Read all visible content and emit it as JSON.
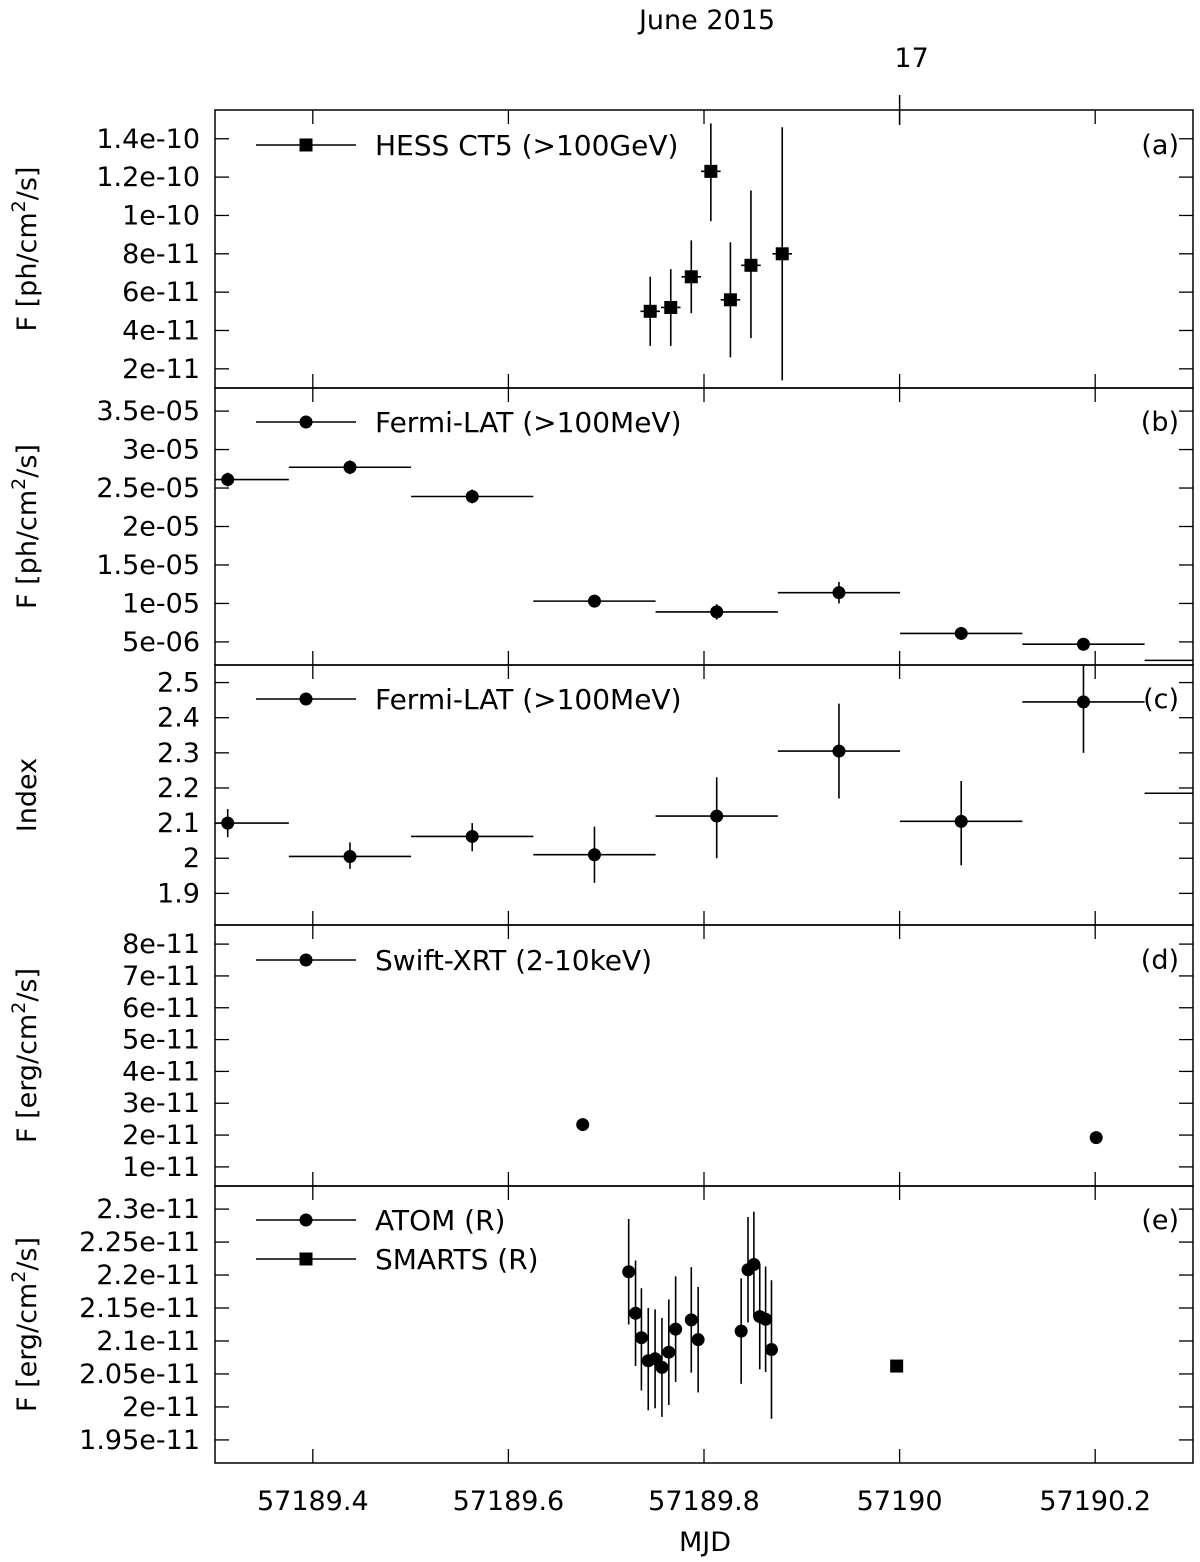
{
  "chart_data": {
    "type": "scatter",
    "layout": "five vertically stacked panels sharing the MJD x-axis",
    "top_axis": {
      "title": "June 2015",
      "tick_values": [
        57190
      ],
      "tick_labels": [
        "17"
      ]
    },
    "x_axis": {
      "label": "MJD",
      "range": [
        57189.3,
        57190.3
      ],
      "tick_values": [
        57189.4,
        57189.6,
        57189.8,
        57190.0,
        57190.2
      ],
      "tick_labels": [
        "57189.4",
        "57189.6",
        "57189.8",
        "57190",
        "57190.2"
      ]
    },
    "panels": [
      {
        "id": "a",
        "panel_label": "(a)",
        "ylabel": "F [ph/cm²/s]",
        "ylabel_main": "F [ph/cm",
        "ylabel_sup": "2",
        "ylabel_tail": "/s]",
        "ylim": [
          1e-11,
          1.55e-10
        ],
        "yticks": [
          2e-11,
          4e-11,
          6e-11,
          8e-11,
          1e-10,
          1.2e-10,
          1.4e-10
        ],
        "ytick_labels": [
          "2e-11",
          "4e-11",
          "6e-11",
          "8e-11",
          "1e-10",
          "1.2e-10",
          "1.4e-10"
        ],
        "series": [
          {
            "name": "HESS CT5 (>100GeV)",
            "marker": "square",
            "points": [
              {
                "x": 57189.745,
                "xerr": 0.01,
                "y": 5e-11,
                "ylo": 3.2e-11,
                "yhi": 6.8e-11
              },
              {
                "x": 57189.766,
                "xerr": 0.01,
                "y": 5.2e-11,
                "ylo": 3.2e-11,
                "yhi": 7.2e-11
              },
              {
                "x": 57189.787,
                "xerr": 0.01,
                "y": 6.8e-11,
                "ylo": 4.9e-11,
                "yhi": 8.7e-11
              },
              {
                "x": 57189.807,
                "xerr": 0.01,
                "y": 1.23e-10,
                "ylo": 9.7e-11,
                "yhi": 1.48e-10
              },
              {
                "x": 57189.827,
                "xerr": 0.01,
                "y": 5.6e-11,
                "ylo": 2.6e-11,
                "yhi": 8.6e-11
              },
              {
                "x": 57189.848,
                "xerr": 0.01,
                "y": 7.4e-11,
                "ylo": 3.6e-11,
                "yhi": 1.13e-10
              },
              {
                "x": 57189.88,
                "xerr": 0.01,
                "y": 8e-11,
                "ylo": 1.4e-11,
                "yhi": 1.46e-10
              }
            ]
          }
        ]
      },
      {
        "id": "b",
        "panel_label": "(b)",
        "ylabel": "F [ph/cm²/s]",
        "ylabel_main": "F [ph/cm",
        "ylabel_sup": "2",
        "ylabel_tail": "/s]",
        "ylim": [
          2e-06,
          3.8e-05
        ],
        "yticks": [
          5e-06,
          1e-05,
          1.5e-05,
          2e-05,
          2.5e-05,
          3e-05,
          3.5e-05
        ],
        "ytick_labels": [
          "5e-06",
          "1e-05",
          "1.5e-05",
          "2e-05",
          "2.5e-05",
          "3e-05",
          "3.5e-05"
        ],
        "series": [
          {
            "name": "Fermi-LAT (>100MeV)",
            "marker": "circle",
            "points": [
              {
                "x": 57189.313,
                "xerr": 0.0625,
                "y": 2.61e-05,
                "ylo": 2.52e-05,
                "yhi": 2.7e-05
              },
              {
                "x": 57189.438,
                "xerr": 0.0625,
                "y": 2.77e-05,
                "ylo": 2.68e-05,
                "yhi": 2.86e-05
              },
              {
                "x": 57189.563,
                "xerr": 0.0625,
                "y": 2.39e-05,
                "ylo": 2.3e-05,
                "yhi": 2.48e-05
              },
              {
                "x": 57189.688,
                "xerr": 0.0625,
                "y": 1.03e-05,
                "ylo": 9.6e-06,
                "yhi": 1.1e-05
              },
              {
                "x": 57189.813,
                "xerr": 0.0625,
                "y": 8.9e-06,
                "ylo": 7.9e-06,
                "yhi": 9.9e-06
              },
              {
                "x": 57189.938,
                "xerr": 0.0625,
                "y": 1.14e-05,
                "ylo": 1e-05,
                "yhi": 1.28e-05
              },
              {
                "x": 57190.063,
                "xerr": 0.0625,
                "y": 6.1e-06,
                "ylo": 5.5e-06,
                "yhi": 6.7e-06
              },
              {
                "x": 57190.188,
                "xerr": 0.0625,
                "y": 4.7e-06,
                "ylo": 4.1e-06,
                "yhi": 5.3e-06
              },
              {
                "x": 57190.313,
                "xerr": 0.0625,
                "y": 2.6e-06,
                "ylo": 2.6e-06,
                "yhi": 2.6e-06
              }
            ]
          }
        ]
      },
      {
        "id": "c",
        "panel_label": "(c)",
        "ylabel": "Index",
        "ylim": [
          1.81,
          2.55
        ],
        "yticks": [
          1.9,
          2.0,
          2.1,
          2.2,
          2.3,
          2.4,
          2.5
        ],
        "ytick_labels": [
          "1.9",
          "2",
          "2.1",
          "2.2",
          "2.3",
          "2.4",
          "2.5"
        ],
        "series": [
          {
            "name": "Fermi-LAT (>100MeV)",
            "marker": "circle",
            "points": [
              {
                "x": 57189.313,
                "xerr": 0.0625,
                "y": 2.1,
                "ylo": 2.06,
                "yhi": 2.14
              },
              {
                "x": 57189.438,
                "xerr": 0.0625,
                "y": 2.005,
                "ylo": 1.97,
                "yhi": 2.045
              },
              {
                "x": 57189.563,
                "xerr": 0.0625,
                "y": 2.062,
                "ylo": 2.02,
                "yhi": 2.1
              },
              {
                "x": 57189.688,
                "xerr": 0.0625,
                "y": 2.01,
                "ylo": 1.93,
                "yhi": 2.09
              },
              {
                "x": 57189.813,
                "xerr": 0.0625,
                "y": 2.12,
                "ylo": 2.0,
                "yhi": 2.23
              },
              {
                "x": 57189.938,
                "xerr": 0.0625,
                "y": 2.305,
                "ylo": 2.17,
                "yhi": 2.44
              },
              {
                "x": 57190.063,
                "xerr": 0.0625,
                "y": 2.105,
                "ylo": 1.98,
                "yhi": 2.22
              },
              {
                "x": 57190.188,
                "xerr": 0.0625,
                "y": 2.445,
                "ylo": 2.3,
                "yhi": 2.59
              },
              {
                "x": 57190.313,
                "xerr": 0.0625,
                "y": 2.185,
                "ylo": 2.185,
                "yhi": 2.185
              }
            ]
          }
        ]
      },
      {
        "id": "d",
        "panel_label": "(d)",
        "ylabel": "F [erg/cm²/s]",
        "ylabel_main": "F [erg/cm",
        "ylabel_sup": "2",
        "ylabel_tail": "/s]",
        "ylim": [
          4e-12,
          8.6e-11
        ],
        "yticks": [
          1e-11,
          2e-11,
          3e-11,
          4e-11,
          5e-11,
          6e-11,
          7e-11,
          8e-11
        ],
        "ytick_labels": [
          "1e-11",
          "2e-11",
          "3e-11",
          "4e-11",
          "5e-11",
          "6e-11",
          "7e-11",
          "8e-11"
        ],
        "series": [
          {
            "name": "Swift-XRT (2-10keV)",
            "marker": "circle",
            "points": [
              {
                "x": 57189.676,
                "xerr": 0.0,
                "y": 2.33e-11,
                "ylo": 2.2e-11,
                "yhi": 2.48e-11
              },
              {
                "x": 57190.201,
                "xerr": 0.0,
                "y": 1.92e-11,
                "ylo": 1.85e-11,
                "yhi": 1.99e-11
              }
            ]
          }
        ]
      },
      {
        "id": "e",
        "panel_label": "(e)",
        "ylabel": "F [erg/cm²/s]",
        "ylabel_main": "F [erg/cm",
        "ylabel_sup": "2",
        "ylabel_tail": "/s]",
        "ylim": [
          1.915e-11,
          2.335e-11
        ],
        "yticks": [
          1.95e-11,
          2e-11,
          2.05e-11,
          2.1e-11,
          2.15e-11,
          2.2e-11,
          2.25e-11,
          2.3e-11
        ],
        "ytick_labels": [
          "1.95e-11",
          "2e-11",
          "2.05e-11",
          "2.1e-11",
          "2.15e-11",
          "2.2e-11",
          "2.25e-11",
          "2.3e-11"
        ],
        "series": [
          {
            "name": "ATOM (R)",
            "marker": "circle",
            "points": [
              {
                "x": 57189.723,
                "xerr": 0.0,
                "y": 2.205e-11,
                "ylo": 2.125e-11,
                "yhi": 2.285e-11
              },
              {
                "x": 57189.73,
                "xerr": 0.0,
                "y": 2.142e-11,
                "ylo": 2.062e-11,
                "yhi": 2.222e-11
              },
              {
                "x": 57189.736,
                "xerr": 0.0,
                "y": 2.105e-11,
                "ylo": 2.025e-11,
                "yhi": 2.18e-11
              },
              {
                "x": 57189.743,
                "xerr": 0.0,
                "y": 2.07e-11,
                "ylo": 1.995e-11,
                "yhi": 2.15e-11
              },
              {
                "x": 57189.75,
                "xerr": 0.0,
                "y": 2.073e-11,
                "ylo": 1.998e-11,
                "yhi": 2.148e-11
              },
              {
                "x": 57189.757,
                "xerr": 0.0,
                "y": 2.06e-11,
                "ylo": 1.985e-11,
                "yhi": 2.135e-11
              },
              {
                "x": 57189.764,
                "xerr": 0.0,
                "y": 2.083e-11,
                "ylo": 2.003e-11,
                "yhi": 2.163e-11
              },
              {
                "x": 57189.771,
                "xerr": 0.0,
                "y": 2.118e-11,
                "ylo": 2.038e-11,
                "yhi": 2.198e-11
              },
              {
                "x": 57189.787,
                "xerr": 0.0,
                "y": 2.132e-11,
                "ylo": 2.052e-11,
                "yhi": 2.212e-11
              },
              {
                "x": 57189.794,
                "xerr": 0.0,
                "y": 2.102e-11,
                "ylo": 2.022e-11,
                "yhi": 2.182e-11
              },
              {
                "x": 57189.838,
                "xerr": 0.0,
                "y": 2.115e-11,
                "ylo": 2.035e-11,
                "yhi": 2.195e-11
              },
              {
                "x": 57189.845,
                "xerr": 0.0,
                "y": 2.208e-11,
                "ylo": 2.128e-11,
                "yhi": 2.288e-11
              },
              {
                "x": 57189.851,
                "xerr": 0.0,
                "y": 2.216e-11,
                "ylo": 2.136e-11,
                "yhi": 2.296e-11
              },
              {
                "x": 57189.857,
                "xerr": 0.0,
                "y": 2.137e-11,
                "ylo": 2.057e-11,
                "yhi": 2.217e-11
              },
              {
                "x": 57189.863,
                "xerr": 0.0,
                "y": 2.133e-11,
                "ylo": 2.053e-11,
                "yhi": 2.213e-11
              },
              {
                "x": 57189.869,
                "xerr": 0.0,
                "y": 2.087e-11,
                "ylo": 1.982e-11,
                "yhi": 2.192e-11
              }
            ]
          },
          {
            "name": "SMARTS (R)",
            "marker": "square",
            "points": [
              {
                "x": 57189.997,
                "xerr": 0.0,
                "y": 2.062e-11,
                "ylo": 2.062e-11,
                "yhi": 2.062e-11
              }
            ]
          }
        ]
      }
    ]
  }
}
